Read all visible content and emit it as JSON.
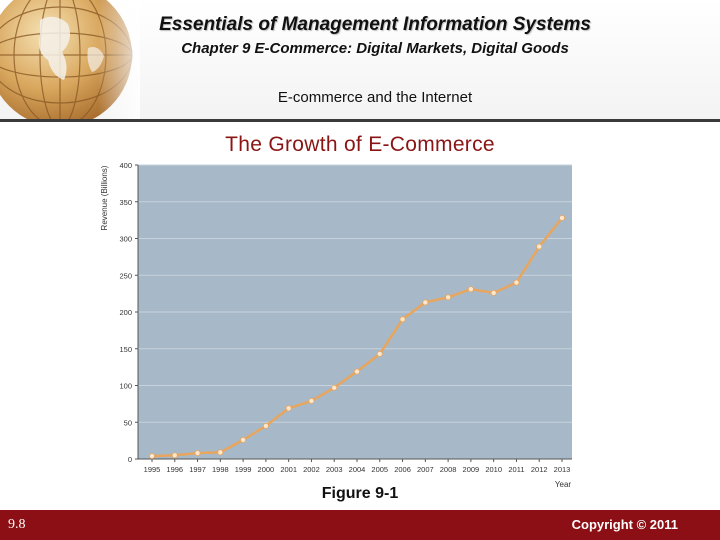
{
  "header": {
    "course_title": "Essentials of Management Information Systems",
    "chapter_title": "Chapter 9 E-Commerce: Digital Markets, Digital Goods",
    "section_title": "E-commerce and the Internet"
  },
  "slide_title": "The Growth of E-Commerce",
  "figure_caption": "Figure 9-1",
  "footer": {
    "page_number": "9.8",
    "copyright": "Copyright © 2011"
  },
  "colors": {
    "plot_background": "#a7b9c8",
    "line": "#e8a55d",
    "marker": "#fde7cf",
    "title_red": "#8a1515",
    "footer_red": "#8b0f14"
  },
  "chart_data": {
    "type": "line",
    "title": "",
    "xlabel": "Year",
    "ylabel": "Revenue (Billions)",
    "ylim": [
      0,
      400
    ],
    "yticks": [
      0,
      50,
      100,
      150,
      200,
      250,
      300,
      350,
      400
    ],
    "grid": true,
    "categories": [
      "1995",
      "1996",
      "1997",
      "1998",
      "1999",
      "2000",
      "2001",
      "2002",
      "2003",
      "2004",
      "2005",
      "2006",
      "2007",
      "2008",
      "2009",
      "2010",
      "2011",
      "2012",
      "2013"
    ],
    "series": [
      {
        "values": [
          4,
          5,
          8,
          9,
          26,
          45,
          69,
          79,
          97,
          119,
          143,
          190,
          213,
          220,
          231,
          226,
          240,
          289,
          328
        ]
      }
    ]
  }
}
